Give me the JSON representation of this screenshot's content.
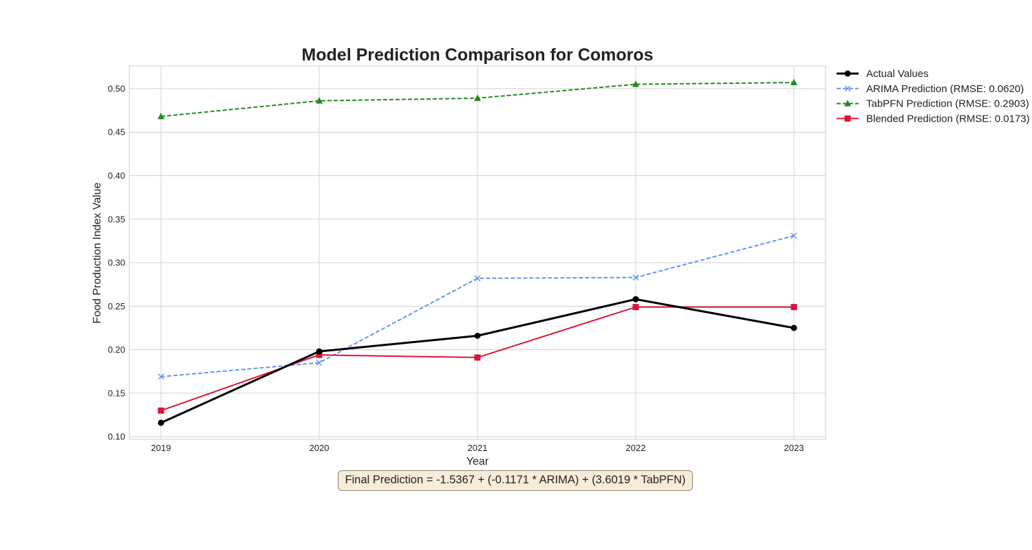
{
  "chart_data": {
    "type": "line",
    "title": "Model Prediction Comparison for Comoros",
    "xlabel": "Year",
    "ylabel": "Food Production Index Value",
    "x": [
      "2019",
      "2020",
      "2021",
      "2022",
      "2023"
    ],
    "xlim": [
      2018.8,
      2023.2
    ],
    "ylim": [
      0.097,
      0.526
    ],
    "yticks": [
      "0.10",
      "0.15",
      "0.20",
      "0.25",
      "0.30",
      "0.35",
      "0.40",
      "0.45",
      "0.50"
    ],
    "grid": true,
    "legend_position": "outside-top-right",
    "series": [
      {
        "name": "Actual Values",
        "values": [
          0.116,
          0.198,
          0.216,
          0.258,
          0.225
        ],
        "color": "#000000",
        "style": "solid",
        "marker": "circle"
      },
      {
        "name": "ARIMA Prediction (RMSE: 0.0620)",
        "values": [
          0.169,
          0.185,
          0.282,
          0.283,
          0.331
        ],
        "color": "#6495ed",
        "style": "dashed",
        "marker": "x"
      },
      {
        "name": "TabPFN Prediction (RMSE: 0.2903)",
        "values": [
          0.468,
          0.486,
          0.489,
          0.505,
          0.507
        ],
        "color": "#228b22",
        "style": "dashed",
        "marker": "triangle"
      },
      {
        "name": "Blended Prediction (RMSE: 0.0173)",
        "values": [
          0.13,
          0.194,
          0.191,
          0.249,
          0.249
        ],
        "color": "#dc143c",
        "style": "solid",
        "marker": "square"
      }
    ],
    "annotation": "Final Prediction = -1.5367 + (-0.1171 * ARIMA) + (3.6019 * TabPFN)"
  }
}
